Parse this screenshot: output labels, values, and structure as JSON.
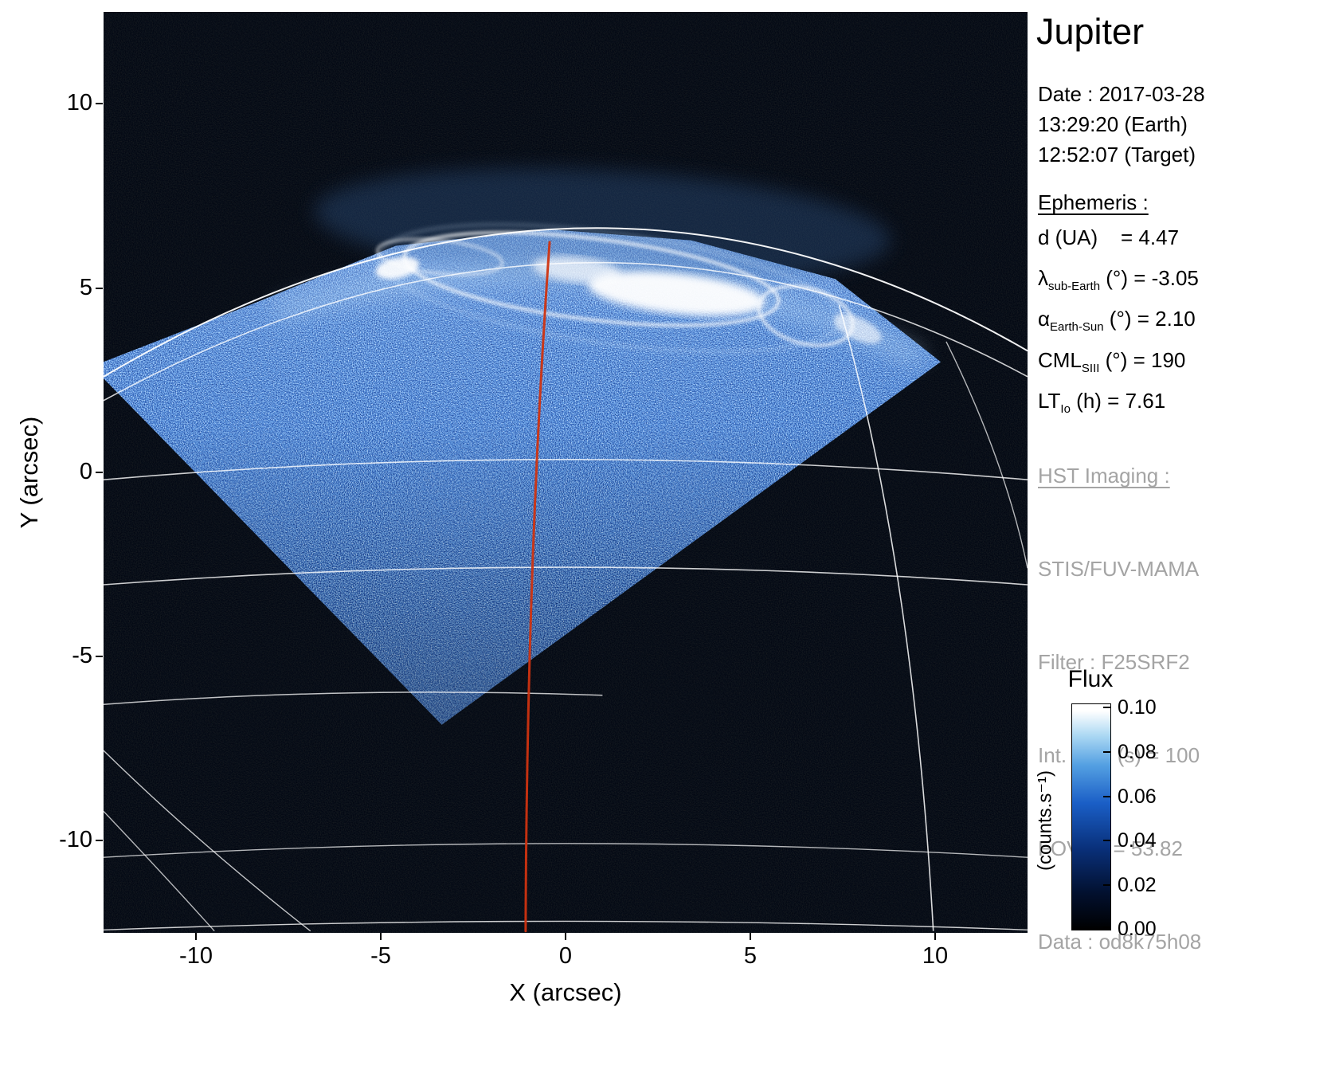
{
  "title": "Jupiter",
  "observation": {
    "date_line": "Date : 2017-03-28",
    "time_earth_line": "13:29:20 (Earth)",
    "time_target_line": "12:52:07 (Target)"
  },
  "ephemeris": {
    "heading": "Ephemeris :",
    "rows": [
      {
        "pre": "d (UA)",
        "sub": "",
        "post": "    = 4.47"
      },
      {
        "pre": "λ",
        "sub": "sub-Earth",
        "post": " (°) = -3.05"
      },
      {
        "pre": "α",
        "sub": "Earth-Sun",
        "post": " (°) = 2.10"
      },
      {
        "pre": "CML",
        "sub": "SIII",
        "post": " (°) = 190"
      },
      {
        "pre": "LT",
        "sub": "Io",
        "post": " (h) = 7.61"
      }
    ]
  },
  "hst_imaging": {
    "heading": "HST Imaging :",
    "lines": [
      "STIS/FUV-MAMA",
      "Filter : F25SRF2",
      "Int. time (s) = 100",
      "FOV (\") = 53.82",
      "Data : od8k75h08"
    ]
  },
  "colorbar": {
    "title": "Flux",
    "unit": "(counts.s⁻¹)",
    "ticks": [
      "0.10",
      "0.08",
      "0.06",
      "0.04",
      "0.02",
      "0.00"
    ]
  },
  "axes": {
    "xlabel": "X (arcsec)",
    "ylabel": "Y (arcsec)",
    "xticks": [
      "-10",
      "-5",
      "0",
      "5",
      "10"
    ],
    "yticks": [
      "10",
      "5",
      "0",
      "-5",
      "-10"
    ]
  },
  "chart_data": {
    "type": "heatmap",
    "title": "Jupiter",
    "xlabel": "X (arcsec)",
    "ylabel": "Y (arcsec)",
    "xlim": [
      -12.5,
      12.5
    ],
    "ylim": [
      -12.5,
      12.5
    ],
    "xticks": [
      -10,
      -5,
      0,
      5,
      10
    ],
    "yticks": [
      10,
      5,
      0,
      -5,
      -10
    ],
    "flux_range": [
      0.0,
      0.1
    ],
    "flux_units": "counts.s⁻¹",
    "colormap": [
      "#000000",
      "#061c4a",
      "#0d3a8c",
      "#2e6fd0",
      "#7db8ea",
      "#ffffff"
    ],
    "description": "HST STIS FUV-MAMA image of Jupiter northern UV aurora; rotated detector footprint filled with blue speckle, bright auroral oval near top, planetary graticule lines and red CML meridian",
    "image": {
      "footprint_polygon": [
        [
          -3.35,
          -6.85
        ],
        [
          -12.5,
          2.55
        ],
        [
          -12.5,
          3.0
        ],
        [
          -8.4,
          4.6
        ],
        [
          -4.6,
          6.15
        ],
        [
          -0.5,
          6.6
        ],
        [
          3.4,
          6.3
        ],
        [
          7.3,
          5.25
        ],
        [
          10.15,
          3.0
        ]
      ],
      "cml_meridian": {
        "from": [
          -0.43,
          6.25
        ],
        "ctrl": [
          -1.05,
          -2.5
        ],
        "to": [
          -1.08,
          -12.45
        ],
        "color": "#cf3310",
        "width": 3
      },
      "graticule_arcs": [
        {
          "from": [
            -12.5,
            2.6
          ],
          "ctrl": [
            0.5,
            10.3
          ],
          "to": [
            12.5,
            3.3
          ],
          "w": 2.0,
          "o": 0.95
        },
        {
          "from": [
            -12.5,
            1.95
          ],
          "ctrl": [
            0.5,
            9.1
          ],
          "to": [
            12.5,
            2.6
          ],
          "w": 1.6,
          "o": 0.8
        },
        {
          "from": [
            -12.5,
            -0.2
          ],
          "ctrl": [
            0,
            0.9
          ],
          "to": [
            12.5,
            -0.2
          ],
          "w": 1.6,
          "o": 0.8
        },
        {
          "from": [
            -12.5,
            -3.05
          ],
          "ctrl": [
            0,
            -2.1
          ],
          "to": [
            12.5,
            -3.05
          ],
          "w": 1.6,
          "o": 0.8
        },
        {
          "from": [
            -12.5,
            -6.3
          ],
          "ctrl": [
            -6,
            -5.8
          ],
          "to": [
            1.0,
            -6.05
          ],
          "w": 1.5,
          "o": 0.75
        },
        {
          "from": [
            -12.5,
            -10.45
          ],
          "ctrl": [
            0,
            -9.7
          ],
          "to": [
            12.5,
            -10.45
          ],
          "w": 1.4,
          "o": 0.7
        },
        {
          "from": [
            -12.5,
            -12.42
          ],
          "ctrl": [
            0,
            -11.95
          ],
          "to": [
            12.5,
            -12.42
          ],
          "w": 1.4,
          "o": 0.8
        },
        {
          "from": [
            7.4,
            4.55
          ],
          "ctrl": [
            9.4,
            -2.5
          ],
          "to": [
            9.95,
            -12.45
          ],
          "w": 1.6,
          "o": 0.85
        },
        {
          "from": [
            10.3,
            3.55
          ],
          "ctrl": [
            11.9,
            0.3
          ],
          "to": [
            12.5,
            -2.6
          ],
          "w": 1.4,
          "o": 0.7
        },
        {
          "from": [
            -12.5,
            -7.55
          ],
          "ctrl": [
            -9.9,
            -10.1
          ],
          "to": [
            -6.9,
            -12.45
          ],
          "w": 1.4,
          "o": 0.75
        },
        {
          "from": [
            -12.5,
            -9.2
          ],
          "ctrl": [
            -10.8,
            -11.0
          ],
          "to": [
            -9.5,
            -12.45
          ],
          "w": 1.4,
          "o": 0.7
        }
      ],
      "aurora_features": [
        {
          "shape": "ellipse",
          "cx": 1.0,
          "cy": 6.7,
          "rx": 7.8,
          "ry": 1.5,
          "rot": 3,
          "fill": true,
          "color": "#3a6aa8",
          "o": 0.3,
          "blur": 12
        },
        {
          "shape": "arc",
          "from": [
            -7.6,
            4.4
          ],
          "ctrl": [
            1,
            7.0
          ],
          "to": [
            9.4,
            3.2
          ],
          "w": 28,
          "color": "#b9d8f4",
          "o": 0.32,
          "blur": 12
        },
        {
          "shape": "ellipse",
          "cx": 0.7,
          "cy": 5.25,
          "rx": 5.1,
          "ry": 1.1,
          "rot": 7,
          "fill": false,
          "w": 3.5,
          "color": "#ffffff",
          "o": 0.9,
          "blur": 2
        },
        {
          "shape": "ellipse",
          "cx": 1.2,
          "cy": 5.0,
          "rx": 6.3,
          "ry": 1.5,
          "rot": 8,
          "fill": false,
          "w": 2.5,
          "color": "#dceeff",
          "o": 0.4,
          "blur": 3
        },
        {
          "shape": "ellipse",
          "cx": 3.0,
          "cy": 4.85,
          "rx": 2.4,
          "ry": 0.55,
          "rot": 6,
          "fill": true,
          "color": "#ffffff",
          "o": 0.95,
          "blur": 5
        },
        {
          "shape": "ellipse",
          "cx": 0.3,
          "cy": 5.5,
          "rx": 1.2,
          "ry": 0.35,
          "rot": 6,
          "fill": true,
          "color": "#ffffff",
          "o": 0.7,
          "blur": 5
        },
        {
          "shape": "ellipse",
          "cx": 6.5,
          "cy": 4.25,
          "rx": 1.3,
          "ry": 0.75,
          "rot": 15,
          "fill": false,
          "w": 3.5,
          "color": "#ffffff",
          "o": 0.85,
          "blur": 2
        },
        {
          "shape": "ellipse",
          "cx": 7.9,
          "cy": 3.9,
          "rx": 0.7,
          "ry": 0.3,
          "rot": 25,
          "fill": true,
          "color": "#ffffff",
          "o": 0.6,
          "blur": 3
        },
        {
          "shape": "ellipse",
          "cx": -4.55,
          "cy": 5.55,
          "rx": 0.6,
          "ry": 0.28,
          "rot": -12,
          "fill": true,
          "color": "#ffffff",
          "o": 0.9,
          "blur": 3
        },
        {
          "shape": "ellipse",
          "cx": -3.4,
          "cy": 5.85,
          "rx": 1.7,
          "ry": 0.45,
          "rot": 6,
          "fill": false,
          "w": 3,
          "color": "#ffffff",
          "o": 0.65,
          "blur": 2
        }
      ]
    }
  }
}
